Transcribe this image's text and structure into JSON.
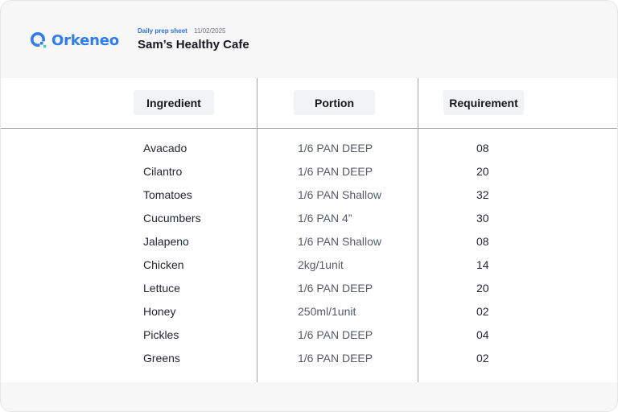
{
  "brand": {
    "name": "Orkeneo",
    "accent": "#2f7cf0",
    "icon": "orkeneo-logo-icon"
  },
  "header": {
    "sheet_label": "Daily prep sheet",
    "date": "11/02/2025",
    "restaurant": "Sam’s Healthy Cafe"
  },
  "table": {
    "columns": [
      "Ingredient",
      "Portion",
      "Requirement"
    ],
    "rows": [
      {
        "ingredient": "Avacado",
        "portion": "1/6 PAN DEEP",
        "requirement": "08"
      },
      {
        "ingredient": "Cilantro",
        "portion": "1/6 PAN DEEP",
        "requirement": "20"
      },
      {
        "ingredient": "Tomatoes",
        "portion": "1/6 PAN Shallow",
        "requirement": "32"
      },
      {
        "ingredient": "Cucumbers",
        "portion": "1/6 PAN 4”",
        "requirement": "30"
      },
      {
        "ingredient": "Jalapeno",
        "portion": "1/6 PAN Shallow",
        "requirement": "08"
      },
      {
        "ingredient": "Chicken",
        "portion": "2kg/1unit",
        "requirement": "14"
      },
      {
        "ingredient": "Lettuce",
        "portion": "1/6 PAN DEEP",
        "requirement": "20"
      },
      {
        "ingredient": "Honey",
        "portion": "250ml/1unit",
        "requirement": "02"
      },
      {
        "ingredient": "Pickles",
        "portion": "1/6 PAN DEEP",
        "requirement": "04"
      },
      {
        "ingredient": "Greens",
        "portion": "1/6 PAN DEEP",
        "requirement": "02"
      }
    ]
  }
}
